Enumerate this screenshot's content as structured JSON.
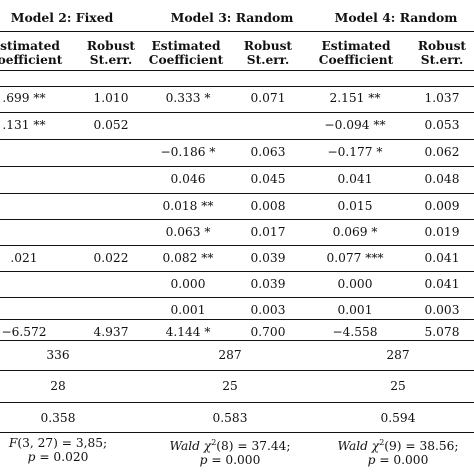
{
  "models": [
    "Model 2: Fixed",
    "Model 3: Random",
    "Model 4: Random"
  ],
  "column_headers": {
    "estimate": [
      "stimated",
      "oefficient"
    ],
    "estimate_full": [
      "Estimated",
      "Coefficient"
    ],
    "robust": [
      "Robust",
      "St.err."
    ]
  },
  "rows": [
    [
      "",
      "",
      "",
      "",
      "",
      ""
    ],
    [
      ".699 **",
      "1.010",
      "0.333 *",
      "0.071",
      "2.151 **",
      "1.037"
    ],
    [
      ".131 **",
      "0.052",
      "",
      "",
      "−0.094 **",
      "0.053"
    ],
    [
      "",
      "",
      "−0.186 *",
      "0.063",
      "−0.177 *",
      "0.062"
    ],
    [
      "",
      "",
      "0.046",
      "0.045",
      "0.041",
      "0.048"
    ],
    [
      "",
      "",
      "0.018 **",
      "0.008",
      "0.015",
      "0.009"
    ],
    [
      "",
      "",
      "0.063 *",
      "0.017",
      "0.069 *",
      "0.019"
    ],
    [
      ".021",
      "0.022",
      "0.082 **",
      "0.039",
      "0.077 ***",
      "0.041"
    ],
    [
      "",
      "",
      "0.000",
      "0.039",
      "0.000",
      "0.041"
    ],
    [
      "",
      "",
      "0.001",
      "0.003",
      "0.001",
      "0.003"
    ],
    [
      "−6.572",
      "4.937",
      "4.144 *",
      "0.700",
      "−4.558",
      "5.078"
    ]
  ],
  "summary": [
    [
      "336",
      "287",
      "287"
    ],
    [
      "28",
      "25",
      "25"
    ],
    [
      "0.358",
      "0.583",
      "0.594"
    ]
  ],
  "tests": [
    {
      "line1_prefix": "",
      "line1_italic": "F",
      "line1_rest": "(3, 27) = 3,85;",
      "line2_italic": "p",
      "line2_rest": " = 0.020"
    },
    {
      "line1_prefix": "",
      "line1_italic": "Wald χ",
      "line1_sup": "2",
      "line1_rest": "(8) = 37.44;",
      "line2_italic": "p",
      "line2_rest": " = 0.000"
    },
    {
      "line1_prefix": "",
      "line1_italic": "Wald χ",
      "line1_sup": "2",
      "line1_rest": "(9) = 38.56;",
      "line2_italic": "p",
      "line2_rest": " = 0.000"
    }
  ]
}
